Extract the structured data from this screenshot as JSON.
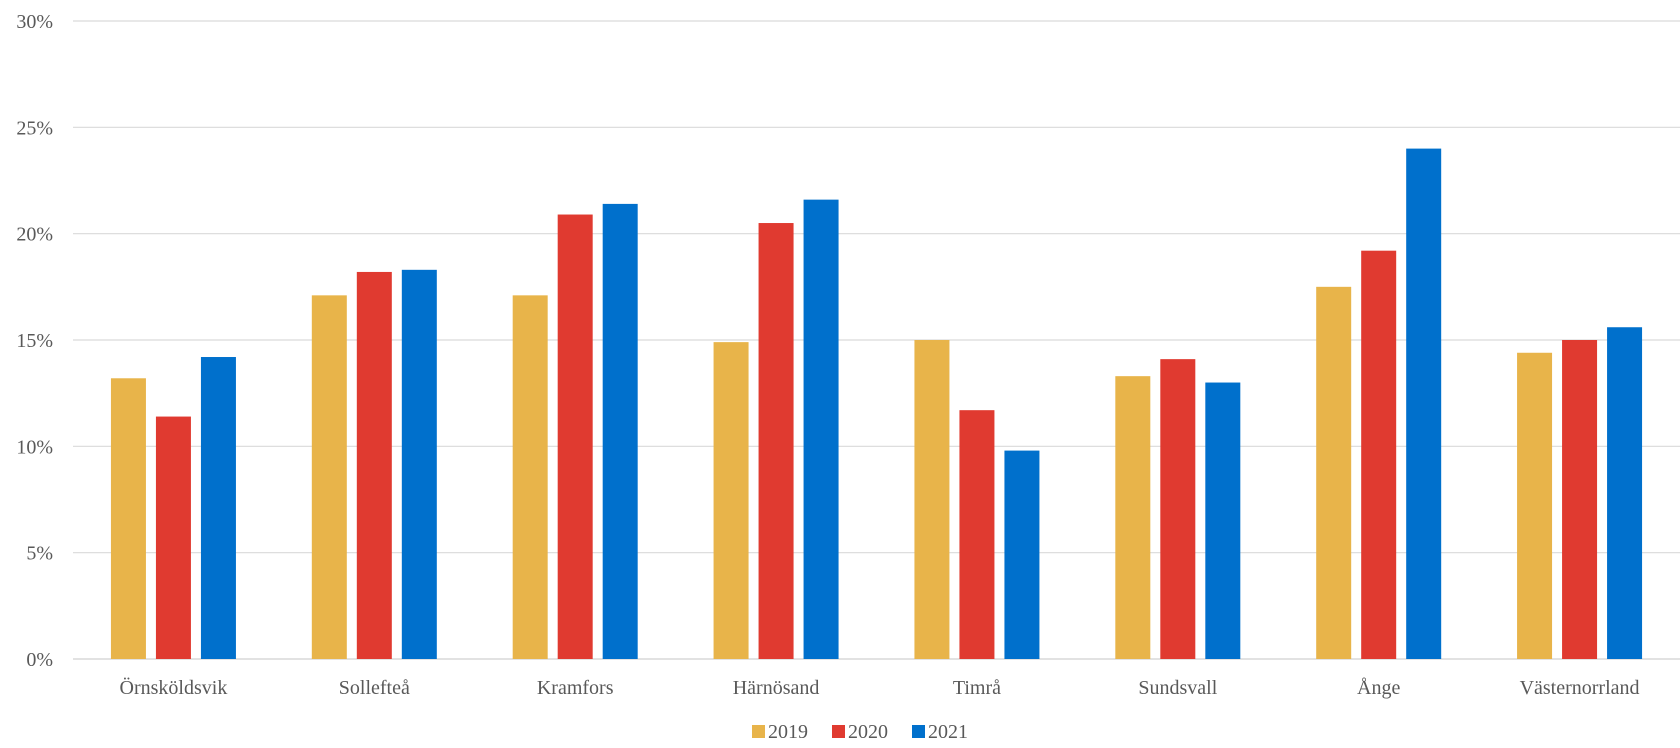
{
  "chart_data": {
    "type": "bar",
    "categories": [
      "Örnsköldsvik",
      "Sollefteå",
      "Kramfors",
      "Härnösand",
      "Timrå",
      "Sundsvall",
      "Ånge",
      "Västernorrland"
    ],
    "series": [
      {
        "name": "2019",
        "color": "#E8B44A",
        "values": [
          13.2,
          17.1,
          17.1,
          14.9,
          15.0,
          13.3,
          17.5,
          14.4
        ]
      },
      {
        "name": "2020",
        "color": "#E03A30",
        "values": [
          11.4,
          18.2,
          20.9,
          20.5,
          11.7,
          14.1,
          19.2,
          15.0
        ]
      },
      {
        "name": "2021",
        "color": "#0070CC",
        "values": [
          14.2,
          18.3,
          21.4,
          21.6,
          9.8,
          13.0,
          24.0,
          15.6
        ]
      }
    ],
    "ylim": [
      0,
      30
    ],
    "yticks": [
      "0%",
      "5%",
      "10%",
      "15%",
      "20%",
      "25%",
      "30%"
    ],
    "ytick_values": [
      0,
      5,
      10,
      15,
      20,
      25,
      30
    ],
    "grid": true,
    "legend_position": "bottom",
    "title": "",
    "xlabel": "",
    "ylabel": ""
  }
}
